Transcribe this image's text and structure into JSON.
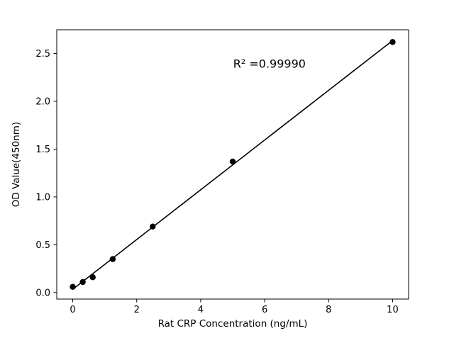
{
  "chart_data": {
    "type": "scatter",
    "title": "",
    "xlabel": "Rat CRP Concentration (ng/mL)",
    "ylabel": "OD Value(450nm)",
    "annotation": "R² =0.99990",
    "annotation_pos": {
      "x": 6.15,
      "y": 2.35
    },
    "x": [
      0,
      0.3125,
      0.625,
      1.25,
      2.5,
      5,
      10
    ],
    "y": [
      0.06,
      0.11,
      0.16,
      0.35,
      0.69,
      1.37,
      2.62
    ],
    "fit_line": true,
    "xlim": [
      -0.5,
      10.5
    ],
    "ylim": [
      -0.068,
      2.748
    ],
    "xticks": [
      0,
      2,
      4,
      6,
      8,
      10
    ],
    "xticklabels": [
      "0",
      "2",
      "4",
      "6",
      "8",
      "10"
    ],
    "yticks": [
      0.0,
      0.5,
      1.0,
      1.5,
      2.0,
      2.5
    ],
    "yticklabels": [
      "0.0",
      "0.5",
      "1.0",
      "1.5",
      "2.0",
      "2.5"
    ],
    "grid": false,
    "legend_position": "none",
    "marker_color": "#000000",
    "line_color": "#000000",
    "background_color": "#ffffff"
  }
}
